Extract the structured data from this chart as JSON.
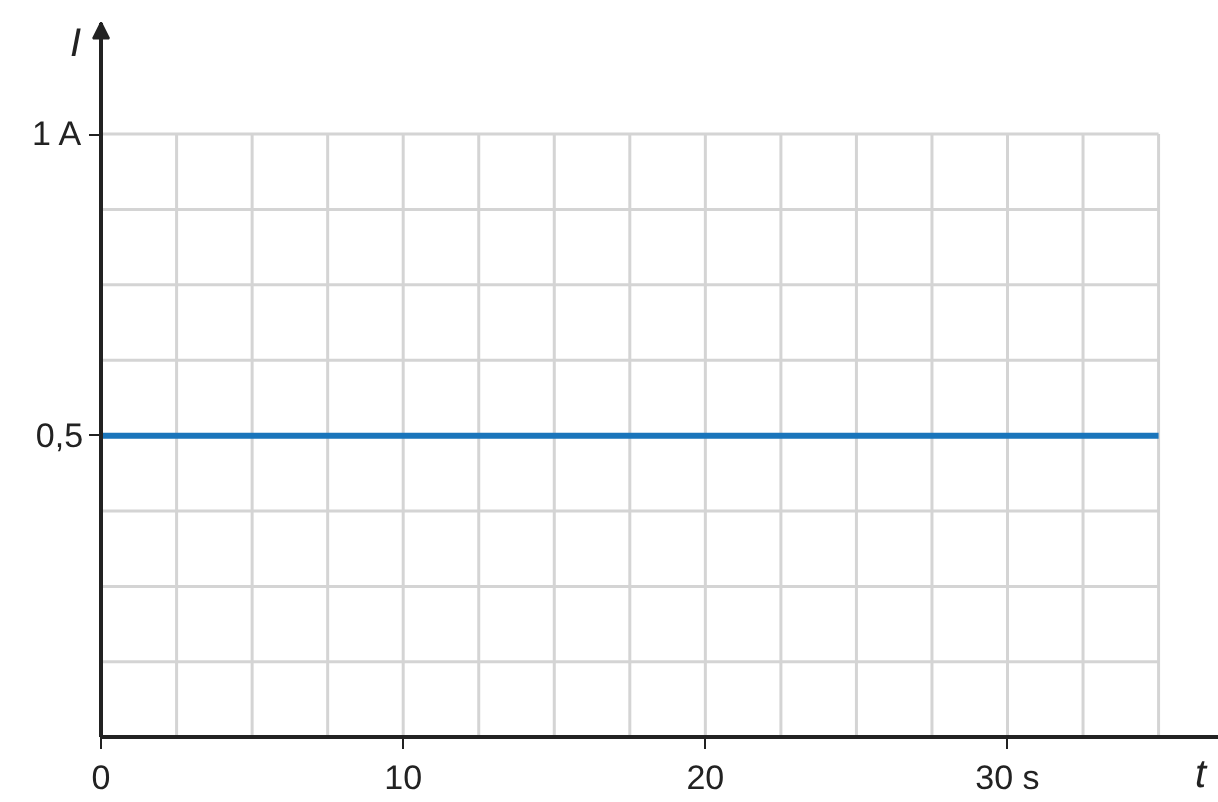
{
  "chart_data": {
    "type": "line",
    "xlabel": "t",
    "ylabel": "I",
    "x": [
      0,
      35
    ],
    "series": [
      {
        "color": "#1a75bb",
        "values": [
          0.5,
          0.5
        ]
      }
    ],
    "xlim": [
      0,
      37
    ],
    "ylim": [
      0,
      1.185
    ],
    "xticks": [
      0,
      {
        "value": 2.5,
        "label": null
      },
      {
        "value": 5,
        "label": null
      },
      {
        "value": 7.5,
        "label": null
      },
      10,
      {
        "value": 12.5,
        "label": null
      },
      {
        "value": 15,
        "label": null
      },
      {
        "value": 17.5,
        "label": null
      },
      20,
      {
        "value": 22.5,
        "label": null
      },
      {
        "value": 25,
        "label": null
      },
      {
        "value": 27.5,
        "label": null
      },
      {
        "value": 30,
        "label": "30 s"
      },
      {
        "value": 32.5,
        "label": null
      },
      {
        "value": 35,
        "label": null
      }
    ],
    "yticks": [
      {
        "value": 0.125,
        "label": null
      },
      {
        "value": 0.25,
        "label": null
      },
      {
        "value": 0.375,
        "label": null
      },
      {
        "value": 0.5,
        "label": "0,5"
      },
      {
        "value": 0.625,
        "label": null
      },
      {
        "value": 0.75,
        "label": null
      },
      {
        "value": 0.875,
        "label": null
      },
      {
        "value": 1,
        "label": "1 A"
      }
    ],
    "grid": true,
    "line_style": "solid",
    "marker": "none"
  }
}
